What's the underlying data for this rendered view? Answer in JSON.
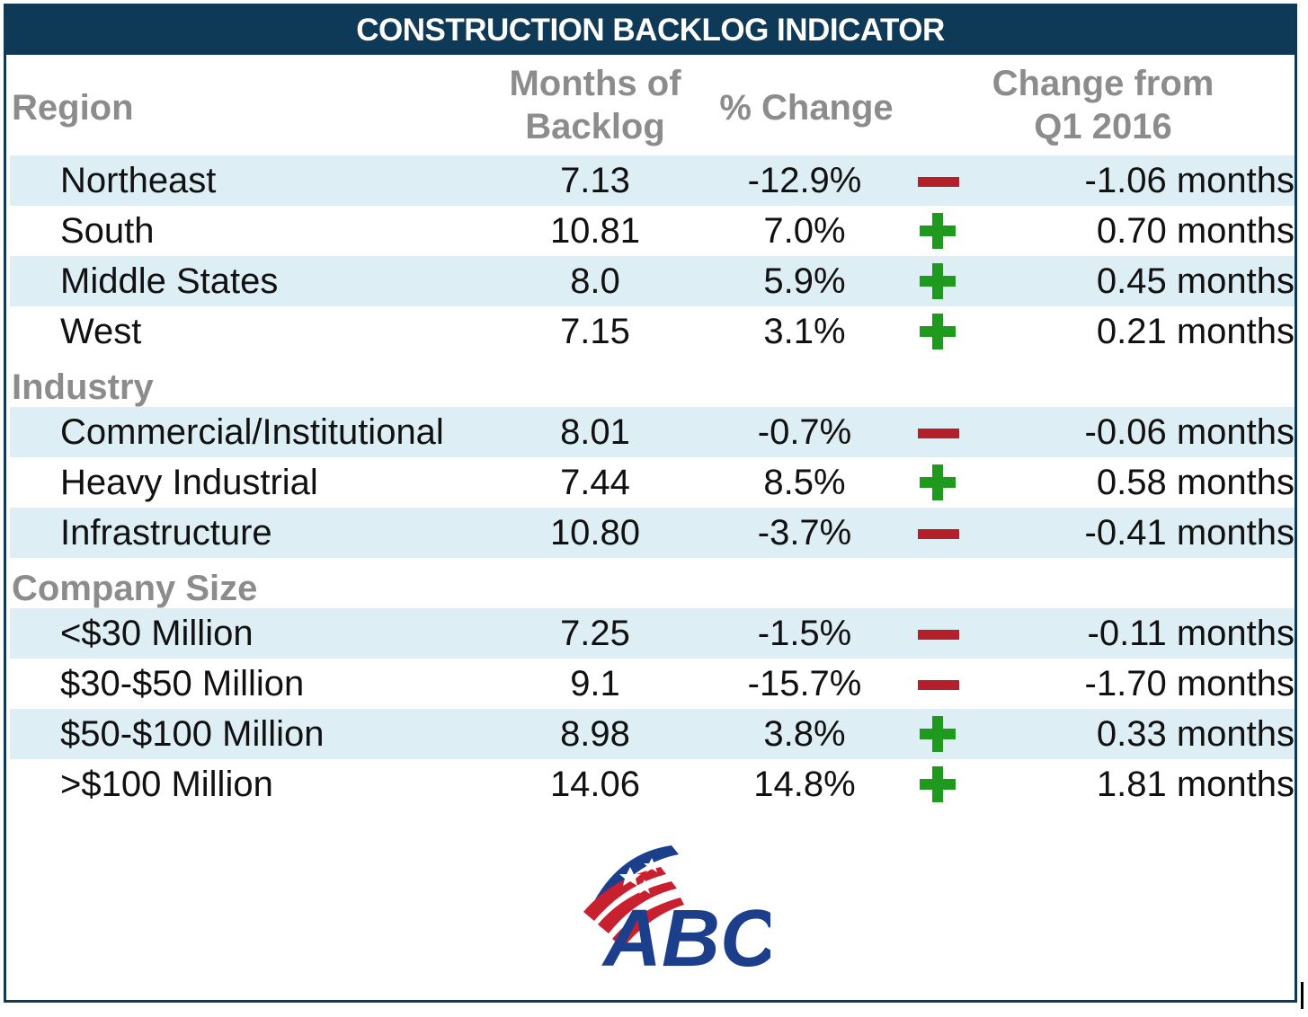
{
  "title": "CONSTRUCTION BACKLOG INDICATOR",
  "headers": {
    "region": "Region",
    "months_line1": "Months of",
    "months_line2": "Backlog",
    "pct": "% Change",
    "change_line1": "Change from",
    "change_line2": "Q1 2016"
  },
  "sections": {
    "industry": "Industry",
    "company_size": "Company Size"
  },
  "colors": {
    "header_bg": "#0f3a57",
    "band": "#deeef5",
    "label_gray": "#8c8c8c",
    "plus_green": "#1f9a1f",
    "minus_red": "#b3202a"
  },
  "chart_data": {
    "type": "table",
    "title": "CONSTRUCTION BACKLOG INDICATOR",
    "columns": [
      "Region",
      "Months of Backlog",
      "% Change",
      "Change from Q1 2016"
    ],
    "rows": [
      {
        "group": "Region",
        "label": "Northeast",
        "months": "7.13",
        "pct": "-12.9%",
        "direction": "minus",
        "change": "-1.06 months"
      },
      {
        "group": "Region",
        "label": "South",
        "months": "10.81",
        "pct": "7.0%",
        "direction": "plus",
        "change": "0.70 months"
      },
      {
        "group": "Region",
        "label": "Middle States",
        "months": "8.0",
        "pct": "5.9%",
        "direction": "plus",
        "change": "0.45 months"
      },
      {
        "group": "Region",
        "label": "West",
        "months": "7.15",
        "pct": "3.1%",
        "direction": "plus",
        "change": "0.21 months"
      },
      {
        "group": "Industry",
        "label": "Commercial/Institutional",
        "months": "8.01",
        "pct": "-0.7%",
        "direction": "minus",
        "change": "-0.06 months"
      },
      {
        "group": "Industry",
        "label": "Heavy Industrial",
        "months": "7.44",
        "pct": "8.5%",
        "direction": "plus",
        "change": "0.58 months"
      },
      {
        "group": "Industry",
        "label": "Infrastructure",
        "months": "10.80",
        "pct": "-3.7%",
        "direction": "minus",
        "change": "-0.41 months"
      },
      {
        "group": "Company Size",
        "label": "<$30 Million",
        "months": "7.25",
        "pct": "-1.5%",
        "direction": "minus",
        "change": "-0.11 months"
      },
      {
        "group": "Company Size",
        "label": "$30-$50 Million",
        "months": "9.1",
        "pct": "-15.7%",
        "direction": "minus",
        "change": "-1.70 months"
      },
      {
        "group": "Company Size",
        "label": "$50-$100 Million",
        "months": "8.98",
        "pct": "3.8%",
        "direction": "plus",
        "change": "0.33 months"
      },
      {
        "group": "Company Size",
        "label": ">$100 Million",
        "months": "14.06",
        "pct": "14.8%",
        "direction": "plus",
        "change": "1.81 months"
      }
    ]
  },
  "logo": {
    "text": "ABC",
    "icon": "abc-flag-logo-icon"
  }
}
